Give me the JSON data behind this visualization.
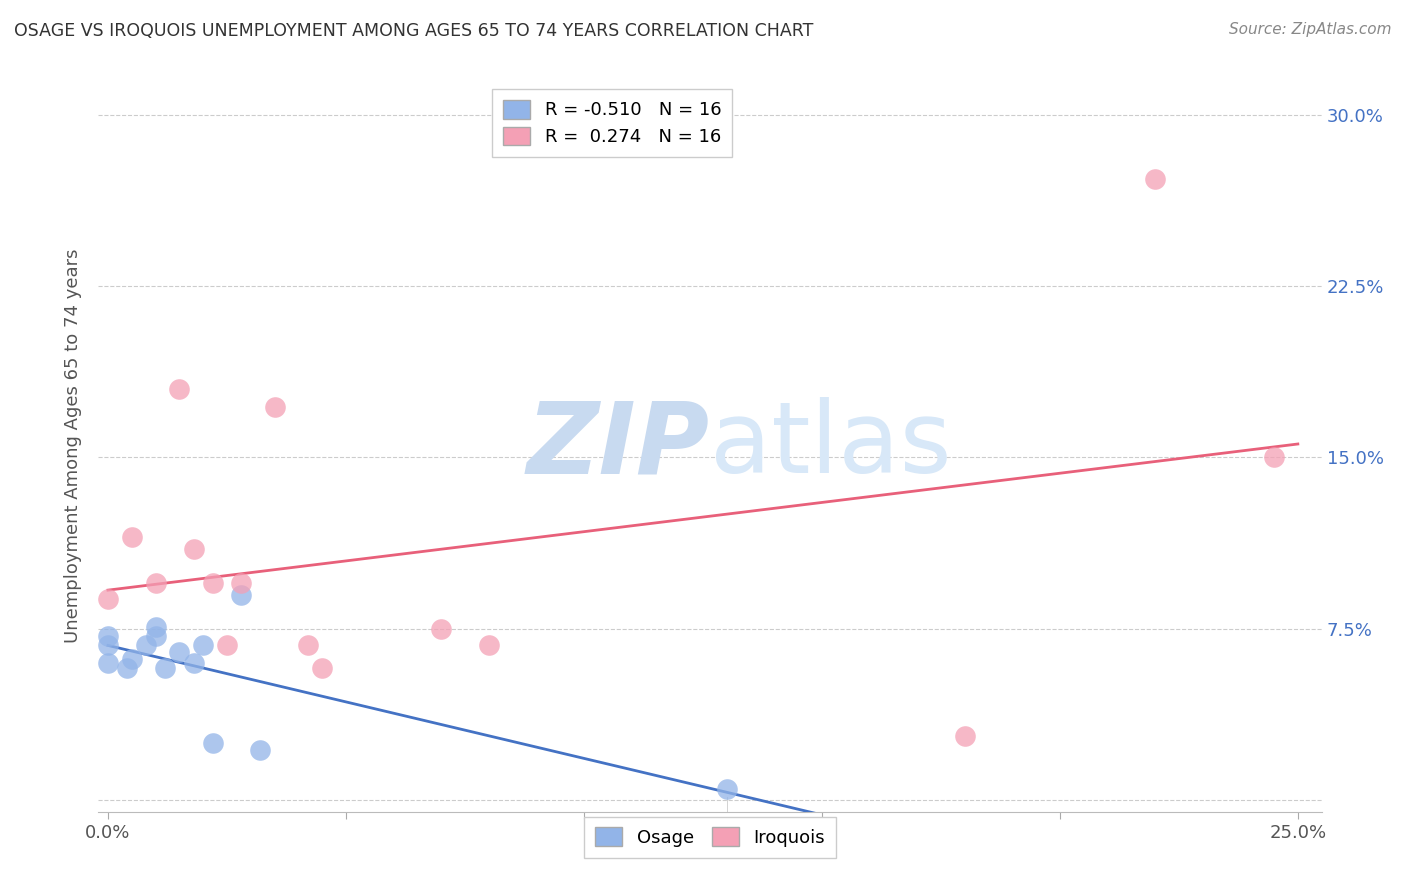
{
  "title": "OSAGE VS IROQUOIS UNEMPLOYMENT AMONG AGES 65 TO 74 YEARS CORRELATION CHART",
  "source": "Source: ZipAtlas.com",
  "ylabel": "Unemployment Among Ages 65 to 74 years",
  "xlim": [
    -0.002,
    0.255
  ],
  "ylim": [
    -0.005,
    0.315
  ],
  "xticks": [
    0.0,
    0.05,
    0.1,
    0.15,
    0.2,
    0.25
  ],
  "yticks": [
    0.0,
    0.075,
    0.15,
    0.225,
    0.3
  ],
  "xticklabels": [
    "0.0%",
    "",
    "",
    "",
    "",
    "25.0%"
  ],
  "yticklabels_right": [
    "",
    "7.5%",
    "15.0%",
    "22.5%",
    "30.0%"
  ],
  "osage_R": -0.51,
  "osage_N": 16,
  "iroquois_R": 0.274,
  "iroquois_N": 16,
  "osage_color": "#92b4e8",
  "iroquois_color": "#f4a0b5",
  "osage_line_color": "#4472c4",
  "iroquois_line_color": "#e8607a",
  "legend_label_osage": "Osage",
  "legend_label_iroquois": "Iroquois",
  "osage_x": [
    0.0,
    0.0,
    0.0,
    0.004,
    0.005,
    0.008,
    0.01,
    0.01,
    0.012,
    0.015,
    0.018,
    0.02,
    0.022,
    0.028,
    0.032,
    0.13
  ],
  "osage_y": [
    0.06,
    0.068,
    0.072,
    0.058,
    0.062,
    0.068,
    0.072,
    0.076,
    0.058,
    0.065,
    0.06,
    0.068,
    0.025,
    0.09,
    0.022,
    0.005
  ],
  "iroquois_x": [
    0.0,
    0.005,
    0.01,
    0.015,
    0.018,
    0.022,
    0.025,
    0.028,
    0.035,
    0.042,
    0.045,
    0.07,
    0.08,
    0.18,
    0.22,
    0.245
  ],
  "iroquois_y": [
    0.088,
    0.115,
    0.095,
    0.18,
    0.11,
    0.095,
    0.068,
    0.095,
    0.172,
    0.068,
    0.058,
    0.075,
    0.068,
    0.028,
    0.272,
    0.15
  ],
  "background_color": "#ffffff",
  "grid_color": "#cccccc",
  "title_color": "#333333",
  "axis_label_color": "#555555",
  "tick_label_color_right": "#4472c4",
  "tick_label_color_bottom": "#555555",
  "watermark_zip_color": "#c8daf0",
  "watermark_atlas_color": "#d8e8f8"
}
